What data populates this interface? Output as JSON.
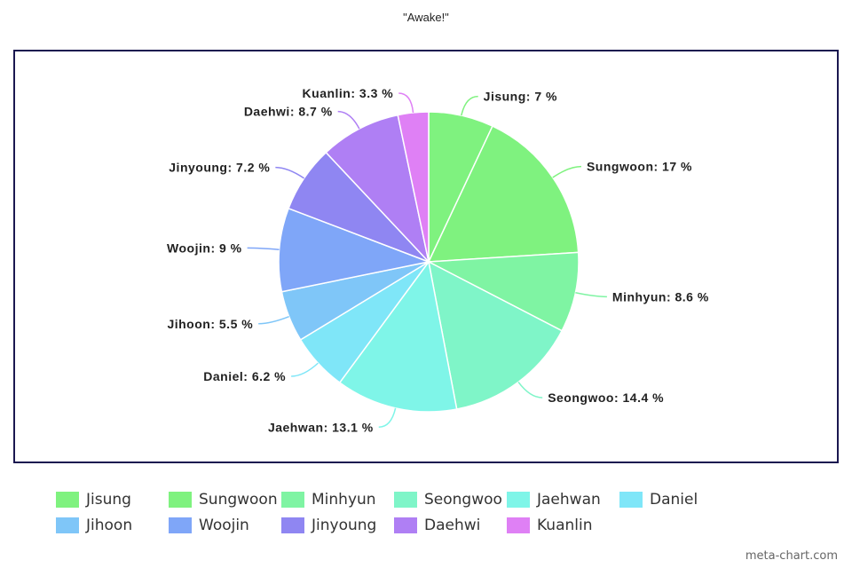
{
  "chart_data": {
    "type": "pie",
    "title": "\"Awake!\"",
    "slices": [
      {
        "name": "Jisung",
        "value": 7,
        "label": "Jisung: 7 %",
        "color": "#7ff27f"
      },
      {
        "name": "Sungwoon",
        "value": 17,
        "label": "Sungwoon: 17 %",
        "color": "#7ff27f"
      },
      {
        "name": "Minhyun",
        "value": 8.6,
        "label": "Minhyun: 8.6 %",
        "color": "#7ff4a3"
      },
      {
        "name": "Seongwoo",
        "value": 14.4,
        "label": "Seongwoo: 14.4 %",
        "color": "#7ff5c8"
      },
      {
        "name": "Jaehwan",
        "value": 13.1,
        "label": "Jaehwan: 13.1 %",
        "color": "#7ff5e8"
      },
      {
        "name": "Daniel",
        "value": 6.2,
        "label": "Daniel: 6.2 %",
        "color": "#7fe6f8"
      },
      {
        "name": "Jihoon",
        "value": 5.5,
        "label": "Jihoon: 5.5 %",
        "color": "#7fc6f8"
      },
      {
        "name": "Woojin",
        "value": 9,
        "label": "Woojin: 9 %",
        "color": "#7fa6f8"
      },
      {
        "name": "Jinyoung",
        "value": 7.2,
        "label": "Jinyoung: 7.2 %",
        "color": "#8f86f2"
      },
      {
        "name": "Daehwi",
        "value": 8.7,
        "label": "Daehwi: 8.7 %",
        "color": "#af7ff4"
      },
      {
        "name": "Kuanlin",
        "value": 3.3,
        "label": "Kuanlin: 3.3 %",
        "color": "#df80f5"
      }
    ],
    "legend_position": "bottom",
    "unit": "%"
  },
  "watermark": "meta-chart.com"
}
